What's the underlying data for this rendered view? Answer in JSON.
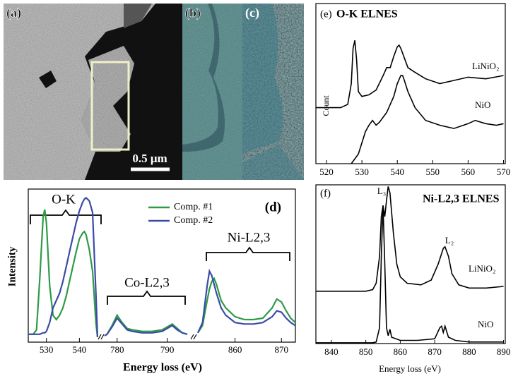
{
  "images": [
    {
      "label": "(a)",
      "scale_bar": "0.5 μm"
    },
    {
      "label": "(b)"
    },
    {
      "label": "(c)"
    }
  ],
  "chart_data": [
    {
      "type": "broken-line",
      "panel": "(d)",
      "xlabel": "Energy loss (eV)",
      "ylabel": "Intensity",
      "ylim": [
        0,
        1
      ],
      "series": [
        {
          "name": "Comp. #1",
          "color": "#2f9a47"
        },
        {
          "name": "Comp. #2",
          "color": "#3b4ba6"
        }
      ],
      "segments": [
        {
          "label": "O-K",
          "xlim": [
            524.5,
            545.5
          ],
          "xticks": [
            530,
            540
          ],
          "x": [
            524.5,
            526,
            527,
            528,
            529,
            529.5,
            530,
            531,
            532,
            533,
            534,
            535,
            536,
            537,
            538,
            539,
            540,
            541,
            541.5,
            542,
            543,
            544,
            545,
            545.5
          ],
          "values": [
            [
              0.02,
              0.02,
              0.05,
              0.4,
              0.82,
              0.87,
              0.78,
              0.35,
              0.15,
              0.12,
              0.15,
              0.2,
              0.28,
              0.38,
              0.48,
              0.58,
              0.67,
              0.71,
              0.72,
              0.7,
              0.6,
              0.45,
              0.1,
              0
            ],
            [
              0.02,
              0.02,
              0.02,
              0.02,
              0.03,
              0.03,
              0.04,
              0.1,
              0.2,
              0.25,
              0.3,
              0.38,
              0.48,
              0.58,
              0.68,
              0.78,
              0.86,
              0.92,
              0.94,
              0.95,
              0.93,
              0.85,
              0.3,
              0
            ]
          ]
        },
        {
          "label": "Co-L2,3",
          "xlim": [
            777.5,
            794
          ],
          "xticks": [
            780,
            790
          ],
          "x": [
            777.5,
            778,
            779,
            780,
            781,
            782,
            783,
            785,
            787,
            789,
            790,
            791,
            792,
            793,
            794
          ],
          "values": [
            [
              0.01,
              0.02,
              0.08,
              0.15,
              0.1,
              0.06,
              0.05,
              0.04,
              0.04,
              0.05,
              0.07,
              0.09,
              0.06,
              0.03,
              0.02
            ],
            [
              0.01,
              0.02,
              0.07,
              0.13,
              0.09,
              0.05,
              0.04,
              0.03,
              0.03,
              0.04,
              0.06,
              0.08,
              0.05,
              0.03,
              0.02
            ]
          ]
        },
        {
          "label": "Ni-L2,3",
          "xlim": [
            852,
            873
          ],
          "xticks": [
            860,
            870
          ],
          "x": [
            852,
            853,
            854,
            854.5,
            855,
            855.5,
            856,
            857,
            858,
            860,
            862,
            864,
            866,
            868,
            869,
            870,
            871,
            872,
            873
          ],
          "values": [
            [
              0.03,
              0.08,
              0.25,
              0.33,
              0.38,
              0.4,
              0.36,
              0.25,
              0.2,
              0.14,
              0.12,
              0.12,
              0.13,
              0.2,
              0.26,
              0.24,
              0.18,
              0.13,
              0.1
            ],
            [
              0.03,
              0.1,
              0.35,
              0.45,
              0.42,
              0.36,
              0.3,
              0.2,
              0.15,
              0.1,
              0.09,
              0.09,
              0.1,
              0.14,
              0.18,
              0.17,
              0.13,
              0.1,
              0.08
            ]
          ]
        }
      ]
    },
    {
      "type": "line",
      "panel": "(e)",
      "title": "O-K ELNES",
      "ylabel": "Count",
      "xlim": [
        517,
        570.5
      ],
      "xticks": [
        520,
        530,
        540,
        550,
        560,
        570
      ],
      "ylim": [
        0,
        1
      ],
      "series": [
        {
          "name": "LiNiO₂",
          "color": "#000000",
          "x": [
            517,
            524,
            526,
            527,
            527.5,
            528,
            528.5,
            529,
            530,
            532,
            534,
            536,
            537,
            538,
            539,
            540,
            540.5,
            541,
            542,
            543,
            545,
            548,
            552,
            556,
            560,
            565,
            570
          ],
          "values": [
            0.35,
            0.35,
            0.37,
            0.5,
            0.72,
            0.77,
            0.65,
            0.45,
            0.42,
            0.43,
            0.46,
            0.55,
            0.6,
            0.6,
            0.67,
            0.73,
            0.74,
            0.72,
            0.66,
            0.6,
            0.57,
            0.53,
            0.5,
            0.52,
            0.54,
            0.53,
            0.55
          ]
        },
        {
          "name": "NiO",
          "color": "#000000",
          "x": [
            527,
            529,
            531,
            532,
            533,
            534,
            535,
            537,
            539,
            540,
            541,
            541.5,
            542,
            543,
            545,
            548,
            552,
            556,
            560,
            562,
            565,
            568,
            570
          ],
          "values": [
            0,
            0.06,
            0.2,
            0.24,
            0.27,
            0.24,
            0.26,
            0.32,
            0.42,
            0.5,
            0.55,
            0.55,
            0.52,
            0.45,
            0.35,
            0.27,
            0.24,
            0.22,
            0.25,
            0.27,
            0.25,
            0.24,
            0.25
          ]
        }
      ]
    },
    {
      "type": "line",
      "panel": "(f)",
      "title": "Ni-L2,3 ELNES",
      "xlabel": "Energy loss (eV)",
      "annotations": [
        "L₃",
        "L₂"
      ],
      "xlim": [
        835.5,
        890.5
      ],
      "xticks": [
        840,
        850,
        860,
        870,
        880,
        890
      ],
      "ylim": [
        0,
        1
      ],
      "series": [
        {
          "name": "LiNiO₂",
          "color": "#000000",
          "x": [
            835.5,
            850,
            852,
            853,
            854,
            854.5,
            855,
            855.5,
            856,
            856.5,
            857,
            858,
            859,
            860,
            862,
            866,
            869,
            871,
            872.5,
            873,
            874,
            875,
            877,
            880,
            885,
            890
          ],
          "values": [
            0.33,
            0.33,
            0.34,
            0.38,
            0.55,
            0.8,
            0.87,
            0.8,
            0.9,
            0.99,
            0.95,
            0.7,
            0.5,
            0.42,
            0.38,
            0.37,
            0.4,
            0.5,
            0.6,
            0.61,
            0.55,
            0.44,
            0.37,
            0.35,
            0.35,
            0.36
          ]
        },
        {
          "name": "NiO",
          "color": "#000000",
          "x": [
            835.5,
            852,
            853,
            854,
            854.5,
            855,
            855.5,
            856,
            856.5,
            857,
            857.5,
            860,
            865,
            870,
            871.5,
            872,
            872.5,
            873,
            874,
            876,
            880,
            890
          ],
          "values": [
            0.005,
            0.005,
            0.01,
            0.1,
            0.55,
            0.87,
            0.5,
            0.1,
            0.05,
            0.09,
            0.04,
            0.02,
            0.02,
            0.03,
            0.1,
            0.11,
            0.07,
            0.11,
            0.04,
            0.02,
            0.01,
            0.01
          ]
        }
      ]
    }
  ]
}
